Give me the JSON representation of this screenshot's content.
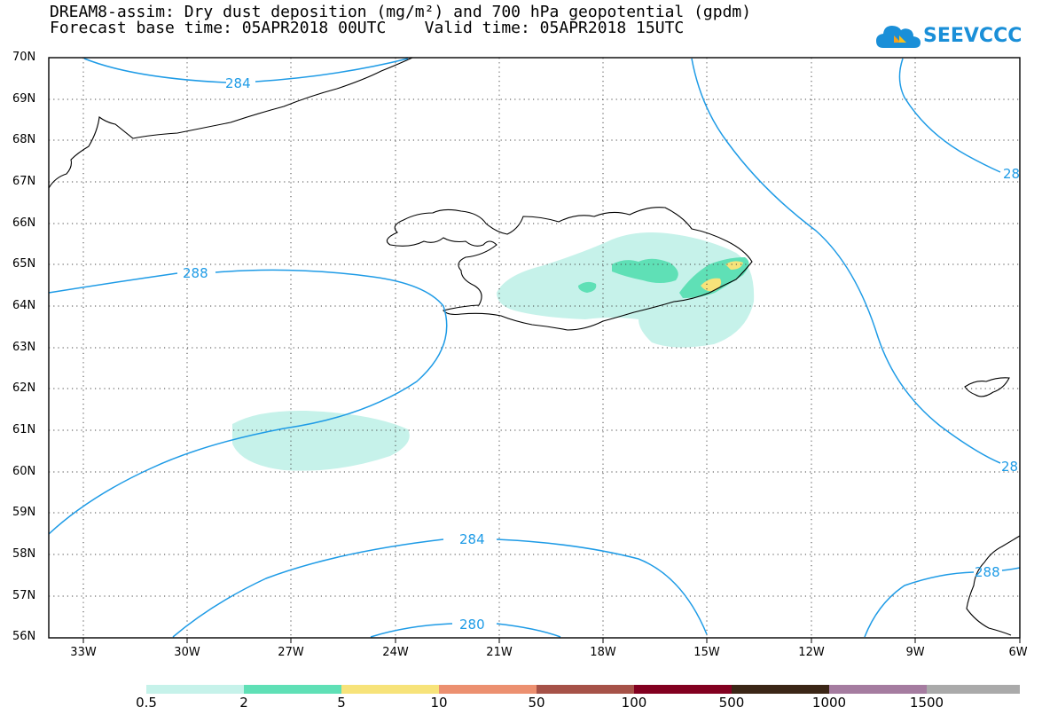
{
  "header": {
    "title_line1": "DREAM8-assim: Dry dust deposition (mg/m²) and 700 hPa geopotential (gpdm)",
    "title_line2": "Forecast base time: 05APR2018 00UTC    Valid time: 05APR2018 15UTC"
  },
  "logo": {
    "text": "SEEVCCC",
    "icon": "cloud-icon",
    "color": "#1a8fd8"
  },
  "map": {
    "projection": "lat-lon",
    "lon_range": [
      -34,
      -6
    ],
    "lat_range": [
      56,
      70
    ],
    "lat_labels": [
      "70N",
      "69N",
      "68N",
      "67N",
      "66N",
      "65N",
      "64N",
      "63N",
      "62N",
      "61N",
      "60N",
      "59N",
      "58N",
      "57N",
      "56N"
    ],
    "lon_labels": [
      "33W",
      "30W",
      "27W",
      "24W",
      "21W",
      "18W",
      "15W",
      "12W",
      "9W",
      "6W"
    ],
    "gridlines": "dotted",
    "contour_color": "#1e9be6",
    "contour_labels": [
      "284",
      "288",
      "284",
      "280",
      "28",
      "28",
      "288"
    ]
  },
  "colorbar": {
    "labels": [
      "0.5",
      "2",
      "5",
      "10",
      "50",
      "100",
      "500",
      "1000",
      "1500"
    ],
    "colors": [
      "#c6f2ea",
      "#5fe0b6",
      "#f7e37a",
      "#ec9070",
      "#a65248",
      "#820020",
      "#3b2616",
      "#a57ca0",
      "#aaaaaa"
    ]
  }
}
